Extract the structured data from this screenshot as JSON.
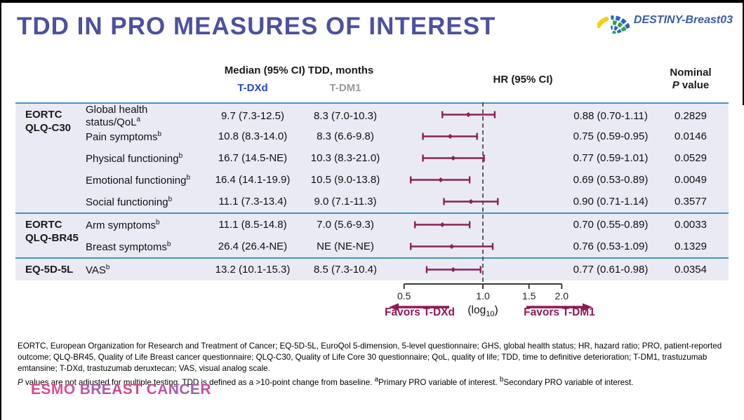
{
  "slide": {
    "title": "TDD IN PRO MEASURES OF INTEREST",
    "program": "DESTINY-Breast03"
  },
  "columns": {
    "median_header": "Median (95% CI) TDD, months",
    "arm_tdxd": "T-DXd",
    "arm_tdm1": "T-DM1",
    "hr_header": "HR (95% CI)",
    "nominal_line1": "Nominal",
    "nominal_p_italic": "P",
    "nominal_p_rest": " value"
  },
  "table": {
    "groups": [
      {
        "name": "EORTC QLQ-C30",
        "name_lines": [
          "EORTC",
          "QLQ-C30"
        ],
        "rows": [
          {
            "measure": "Global health status/QoL",
            "sup": "a",
            "tdxd": "9.7 (7.3-12.5)",
            "tdm1": "8.3 (7.0-10.3)",
            "hr": "0.88 (0.70-1.11)",
            "p": "0.2829"
          },
          {
            "measure": "Pain symptoms",
            "sup": "b",
            "tdxd": "10.8 (8.3-14.0)",
            "tdm1": "8.3 (6.6-9.8)",
            "hr": "0.75 (0.59-0.95)",
            "p": "0.0146"
          },
          {
            "measure": "Physical functioning",
            "sup": "b",
            "tdxd": "16.7 (14.5-NE)",
            "tdm1": "10.3 (8.3-21.0)",
            "hr": "0.77 (0.59-1.01)",
            "p": "0.0529"
          },
          {
            "measure": "Emotional functioning",
            "sup": "b",
            "tdxd": "16.4 (14.1-19.9)",
            "tdm1": "10.5 (9.0-13.8)",
            "hr": "0.69 (0.53-0.89)",
            "p": "0.0049"
          },
          {
            "measure": "Social functioning",
            "sup": "b",
            "tdxd": "11.1 (7.3-13.4)",
            "tdm1": "9.0 (7.1-11.3)",
            "hr": "0.90 (0.71-1.14)",
            "p": "0.3577"
          }
        ]
      },
      {
        "name": "EORTC QLQ-BR45",
        "name_lines": [
          "EORTC",
          "QLQ-BR45"
        ],
        "rows": [
          {
            "measure": "Arm symptoms",
            "sup": "b",
            "tdxd": "11.1 (8.5-14.8)",
            "tdm1": "7.0 (5.6-9.3)",
            "hr": "0.70 (0.55-0.89)",
            "p": "0.0033"
          },
          {
            "measure": "Breast symptoms",
            "sup": "b",
            "tdxd": "26.4 (26.4-NE)",
            "tdm1": "NE (NE-NE)",
            "hr": "0.76 (0.53-1.09)",
            "p": "0.1329"
          }
        ]
      },
      {
        "name": "EQ-5D-5L",
        "name_lines": [
          "EQ-5D-5L"
        ],
        "rows": [
          {
            "measure": "VAS",
            "sup": "b",
            "tdxd": "13.2 (10.1-15.3)",
            "tdm1": "8.5 (7.3-10.4)",
            "hr": "0.77 (0.61-0.98)",
            "p": "0.0354"
          }
        ]
      }
    ]
  },
  "chart_data": {
    "type": "scatter",
    "subtype": "forest-plot",
    "title": "HR (95% CI)",
    "x_scale": "log10",
    "x_ticks": [
      0.5,
      1.0,
      1.5,
      2.0
    ],
    "x_tick_labels": [
      "0.5",
      "1.0",
      "1.5",
      "2.0"
    ],
    "reference_line": 1.0,
    "scale_note": {
      "pre": "(log",
      "sub": "10",
      "post": ")"
    },
    "favors_left": "Favors T-DXd",
    "favors_right": "Favors T-DM1",
    "points": [
      {
        "label": "Global health status/QoL",
        "hr": 0.88,
        "lo": 0.7,
        "hi": 1.11
      },
      {
        "label": "Pain symptoms",
        "hr": 0.75,
        "lo": 0.59,
        "hi": 0.95
      },
      {
        "label": "Physical functioning",
        "hr": 0.77,
        "lo": 0.59,
        "hi": 1.01
      },
      {
        "label": "Emotional functioning",
        "hr": 0.69,
        "lo": 0.53,
        "hi": 0.89
      },
      {
        "label": "Social functioning",
        "hr": 0.9,
        "lo": 0.71,
        "hi": 1.14
      },
      {
        "label": "Arm symptoms",
        "hr": 0.7,
        "lo": 0.55,
        "hi": 0.89
      },
      {
        "label": "Breast symptoms",
        "hr": 0.76,
        "lo": 0.53,
        "hi": 1.09
      },
      {
        "label": "VAS",
        "hr": 0.77,
        "lo": 0.61,
        "hi": 0.98
      }
    ]
  },
  "footer": {
    "abbreviations": "EORTC, European Organization for Research and Treatment of Cancer; EQ-5D-5L, EuroQol 5-dimension, 5-level questionnaire; GHS, global health status; HR, hazard ratio; PRO, patient-reported outcome; QLQ-BR45, Quality of Life Breast cancer questionnaire; QLQ-C30, Quality of Life Core 30 questionnaire; QoL, quality of life; TDD, time to definitive deterioration; T-DM1, trastuzumab emtansine; T-DXd, trastuzumab deruxtecan; VAS, visual analog scale.",
    "note_p": "P",
    "note_body": " values are not adjusted for multiple testing. TDD is defined as a >10-point change from baseline. ",
    "note_sup_a": "a",
    "note_a": "Primary PRO variable of interest. ",
    "note_sup_b": "b",
    "note_b": "Secondary PRO variable of interest.",
    "brand": "ESMO BREAST CANCER"
  },
  "colors": {
    "title": "#4c51a0",
    "tdxd": "#2947c8",
    "tdm1": "#9a9a9a",
    "divider": "#4693c8",
    "row_bg": "#e9eaf4",
    "forest": "#8e2157",
    "favors": "#8c1a56",
    "logo_text": "#3b5cab",
    "brand_pink": "#d94a92"
  }
}
